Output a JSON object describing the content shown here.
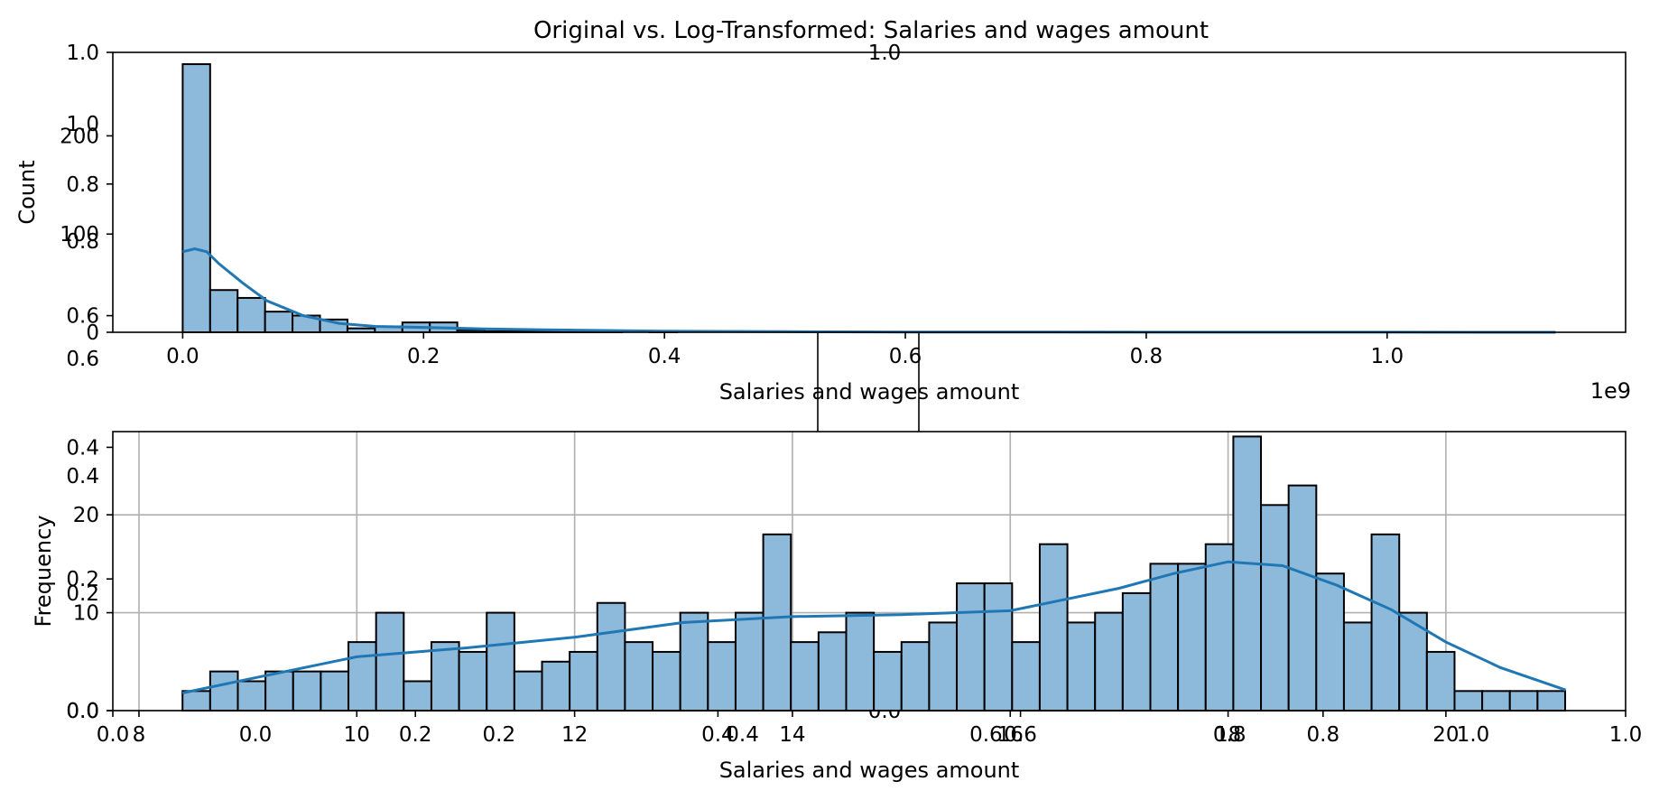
{
  "title": "Original vs. Log-Transformed: Salaries and wages amount",
  "overlay_axes_labels": {
    "top_center_label": "1.0",
    "bottom_center_label": "0.0",
    "left_ticks": [
      "0.0",
      "0.2",
      "0.4",
      "0.6",
      "0.8",
      "1.0"
    ],
    "bottom_ticks": [
      "0.0",
      "0.2",
      "0.4",
      "0.6",
      "0.8",
      "1.0"
    ],
    "middle_bottom_ticks": [
      "0.0",
      "0.2",
      "0.4",
      "0.6",
      "0.8",
      "1.0"
    ],
    "middle_left_ticks": [
      "0.0",
      "0.2",
      "0.4",
      "0.6",
      "0.8",
      "1.0"
    ]
  },
  "chart_data": [
    {
      "type": "bar",
      "subtype": "histogram",
      "xlabel": "Salaries and wages amount",
      "ylabel": "Count",
      "x_offset_text": "1e9",
      "xlim": [
        -0.058,
        1.198
      ],
      "ylim": [
        0,
        285
      ],
      "xticks": [
        0.0,
        0.2,
        0.4,
        0.6,
        0.8,
        1.0
      ],
      "xtick_labels": [
        "0.0",
        "0.2",
        "0.4",
        "0.6",
        "0.8",
        "1.0"
      ],
      "yticks": [
        0,
        100,
        200
      ],
      "ytick_labels": [
        "0",
        "100",
        "200"
      ],
      "bin_start": 0.0,
      "bin_width": 0.0228,
      "counts": [
        273,
        43,
        35,
        21,
        17,
        13,
        4,
        6,
        10,
        10,
        2,
        1,
        1,
        1,
        2,
        1,
        0,
        1,
        0,
        0,
        0,
        0,
        0,
        0,
        0,
        0,
        0,
        0,
        0,
        0,
        0,
        0,
        0,
        0,
        0,
        0,
        0,
        0,
        0,
        0,
        0,
        0,
        0,
        0,
        0,
        0,
        0,
        0,
        0,
        0
      ],
      "kde": {
        "x": [
          0.0,
          0.01,
          0.02,
          0.03,
          0.05,
          0.07,
          0.1,
          0.13,
          0.16,
          0.2,
          0.25,
          0.3,
          0.4,
          0.5,
          0.6,
          0.8,
          1.0,
          1.14
        ],
        "y": [
          82,
          85,
          82,
          70,
          50,
          32,
          17,
          9,
          6,
          5,
          3.5,
          2.5,
          1.2,
          0.6,
          0.3,
          0.1,
          0.05,
          0.02
        ]
      },
      "grid": false
    },
    {
      "type": "bar",
      "subtype": "histogram",
      "xlabel": "Salaries and wages amount",
      "ylabel": "Frequency",
      "xlim": [
        7.76,
        21.65
      ],
      "ylim": [
        0,
        28.5
      ],
      "xticks": [
        8,
        10,
        12,
        14,
        16,
        18,
        20
      ],
      "xtick_labels": [
        "8",
        "10",
        "12",
        "14",
        "16",
        "18",
        "20"
      ],
      "yticks": [
        0,
        10,
        20
      ],
      "ytick_labels": [
        "0",
        "10",
        "20"
      ],
      "bin_start": 8.4,
      "bin_width": 0.2539,
      "counts": [
        2,
        4,
        3,
        4,
        4,
        4,
        7,
        10,
        3,
        7,
        6,
        10,
        4,
        5,
        6,
        11,
        7,
        6,
        10,
        7,
        10,
        18,
        7,
        8,
        10,
        6,
        7,
        9,
        13,
        13,
        7,
        17,
        9,
        10,
        12,
        15,
        15,
        17,
        28,
        21,
        23,
        14,
        9,
        18,
        10,
        6,
        2,
        2,
        2,
        2
      ],
      "kde": {
        "x": [
          8.4,
          9,
          10,
          11,
          12,
          13,
          14,
          15,
          16,
          17,
          17.5,
          18,
          18.5,
          19,
          19.5,
          20,
          20.5,
          21.1
        ],
        "y": [
          1.8,
          3.2,
          5.5,
          6.4,
          7.5,
          9,
          9.6,
          9.8,
          10.2,
          12.5,
          14,
          15.2,
          14.8,
          12.8,
          10.3,
          7,
          4.4,
          2.1
        ]
      },
      "grid": true
    }
  ]
}
